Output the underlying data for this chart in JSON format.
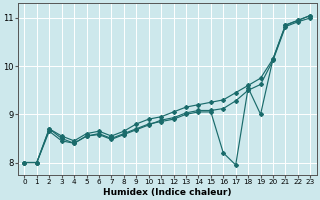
{
  "title": "",
  "xlabel": "Humidex (Indice chaleur)",
  "bg_color": "#cde8ec",
  "grid_color": "#ffffff",
  "line_color": "#1a6b6b",
  "xlim": [
    -0.5,
    23.5
  ],
  "ylim": [
    7.75,
    11.3
  ],
  "xticks": [
    0,
    1,
    2,
    3,
    4,
    5,
    6,
    7,
    8,
    9,
    10,
    11,
    12,
    13,
    14,
    15,
    16,
    17,
    18,
    19,
    20,
    21,
    22,
    23
  ],
  "yticks": [
    8,
    9,
    10,
    11
  ],
  "line1_x": [
    0,
    1,
    2,
    3,
    4,
    5,
    6,
    7,
    8,
    9,
    10,
    11,
    12,
    13,
    14,
    15,
    16,
    17,
    18,
    19,
    20,
    21,
    22,
    23
  ],
  "line1_y": [
    8.0,
    8.0,
    8.7,
    8.55,
    8.45,
    8.6,
    8.65,
    8.55,
    8.65,
    8.8,
    8.9,
    8.95,
    9.05,
    9.15,
    9.2,
    9.25,
    9.3,
    9.45,
    9.6,
    9.75,
    10.15,
    10.85,
    10.95,
    11.05
  ],
  "line2_x": [
    0,
    1,
    2,
    3,
    4,
    5,
    6,
    7,
    8,
    9,
    10,
    11,
    12,
    13,
    14,
    15,
    16,
    17,
    18,
    19,
    20,
    21,
    22,
    23
  ],
  "line2_y": [
    8.0,
    8.0,
    8.7,
    8.5,
    8.4,
    8.55,
    8.6,
    8.5,
    8.6,
    8.7,
    8.8,
    8.85,
    8.9,
    9.0,
    9.05,
    9.05,
    8.2,
    7.95,
    9.55,
    9.0,
    10.15,
    10.85,
    10.95,
    11.05
  ],
  "line3_x": [
    0,
    1,
    2,
    3,
    4,
    5,
    6,
    7,
    8,
    9,
    10,
    11,
    12,
    13,
    14,
    15,
    16,
    17,
    18,
    19,
    20,
    21,
    22,
    23
  ],
  "line3_y": [
    8.0,
    8.0,
    8.65,
    8.45,
    8.4,
    8.55,
    8.58,
    8.48,
    8.58,
    8.68,
    8.78,
    8.88,
    8.93,
    9.03,
    9.08,
    9.08,
    9.12,
    9.28,
    9.5,
    9.62,
    10.12,
    10.82,
    10.92,
    11.0
  ]
}
